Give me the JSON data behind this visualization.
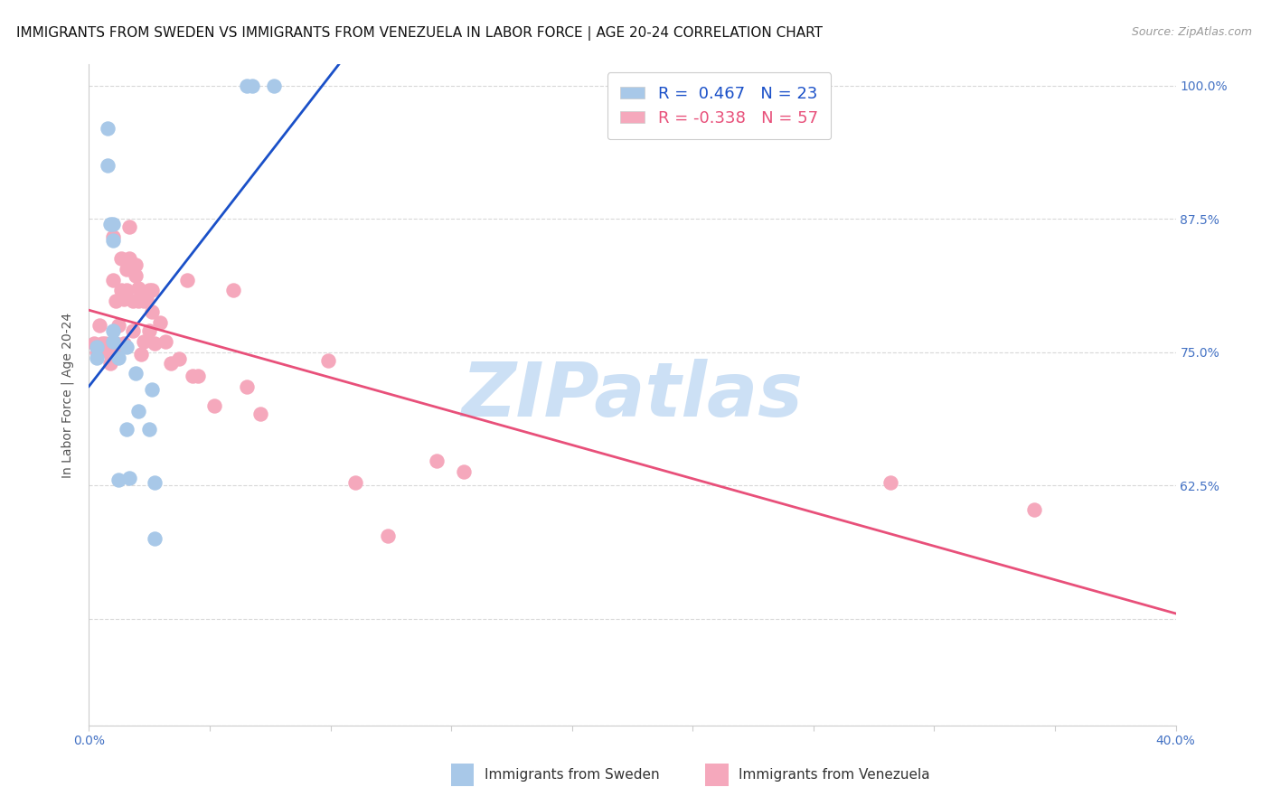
{
  "title": "IMMIGRANTS FROM SWEDEN VS IMMIGRANTS FROM VENEZUELA IN LABOR FORCE | AGE 20-24 CORRELATION CHART",
  "source": "Source: ZipAtlas.com",
  "ylabel": "In Labor Force | Age 20-24",
  "xlim": [
    0.0,
    0.4
  ],
  "ylim": [
    0.4,
    1.02
  ],
  "yticks": [
    0.4,
    0.5,
    0.625,
    0.75,
    0.875,
    1.0
  ],
  "yticklabels": [
    "",
    "",
    "62.5%",
    "75.0%",
    "87.5%",
    "100.0%"
  ],
  "xticks": [
    0.0,
    0.04444,
    0.08889,
    0.13333,
    0.17778,
    0.22222,
    0.26667,
    0.31111,
    0.35556,
    0.4
  ],
  "xticklabels": [
    "0.0%",
    "",
    "",
    "",
    "",
    "",
    "",
    "",
    "",
    "40.0%"
  ],
  "sweden_color": "#a8c8e8",
  "venezuela_color": "#f5a8bc",
  "sweden_line_color": "#1a50c8",
  "venezuela_line_color": "#e8507a",
  "r_sweden": 0.467,
  "n_sweden": 23,
  "r_venezuela": -0.338,
  "n_venezuela": 57,
  "sweden_x": [
    0.003,
    0.003,
    0.007,
    0.007,
    0.008,
    0.009,
    0.009,
    0.009,
    0.009,
    0.011,
    0.011,
    0.014,
    0.014,
    0.015,
    0.017,
    0.018,
    0.022,
    0.023,
    0.024,
    0.024,
    0.058,
    0.06,
    0.068
  ],
  "sweden_y": [
    0.755,
    0.745,
    0.96,
    0.925,
    0.87,
    0.87,
    0.855,
    0.77,
    0.76,
    0.745,
    0.63,
    0.755,
    0.678,
    0.632,
    0.73,
    0.695,
    0.678,
    0.715,
    0.628,
    0.575,
    1.0,
    1.0,
    1.0
  ],
  "venezuela_x": [
    0.002,
    0.003,
    0.004,
    0.005,
    0.006,
    0.007,
    0.008,
    0.008,
    0.008,
    0.009,
    0.009,
    0.01,
    0.01,
    0.01,
    0.011,
    0.012,
    0.012,
    0.013,
    0.013,
    0.014,
    0.014,
    0.015,
    0.015,
    0.016,
    0.016,
    0.017,
    0.017,
    0.018,
    0.018,
    0.019,
    0.019,
    0.02,
    0.02,
    0.021,
    0.022,
    0.022,
    0.023,
    0.023,
    0.024,
    0.026,
    0.028,
    0.03,
    0.033,
    0.036,
    0.038,
    0.04,
    0.046,
    0.053,
    0.058,
    0.063,
    0.088,
    0.098,
    0.11,
    0.128,
    0.138,
    0.295,
    0.348
  ],
  "venezuela_y": [
    0.758,
    0.75,
    0.775,
    0.758,
    0.758,
    0.755,
    0.74,
    0.758,
    0.748,
    0.858,
    0.818,
    0.798,
    0.758,
    0.748,
    0.775,
    0.838,
    0.808,
    0.758,
    0.8,
    0.828,
    0.808,
    0.868,
    0.838,
    0.798,
    0.77,
    0.822,
    0.832,
    0.81,
    0.798,
    0.8,
    0.748,
    0.798,
    0.76,
    0.8,
    0.808,
    0.77,
    0.808,
    0.788,
    0.758,
    0.778,
    0.76,
    0.74,
    0.744,
    0.818,
    0.728,
    0.728,
    0.7,
    0.808,
    0.718,
    0.692,
    0.742,
    0.628,
    0.578,
    0.648,
    0.638,
    0.628,
    0.602
  ],
  "watermark": "ZIPatlas",
  "watermark_color": "#cce0f5",
  "title_fontsize": 11,
  "tick_fontsize": 10,
  "axis_color": "#4472c4",
  "ylabel_color": "#555555",
  "background_color": "#ffffff",
  "grid_color": "#d8d8d8",
  "spine_color": "#cccccc"
}
